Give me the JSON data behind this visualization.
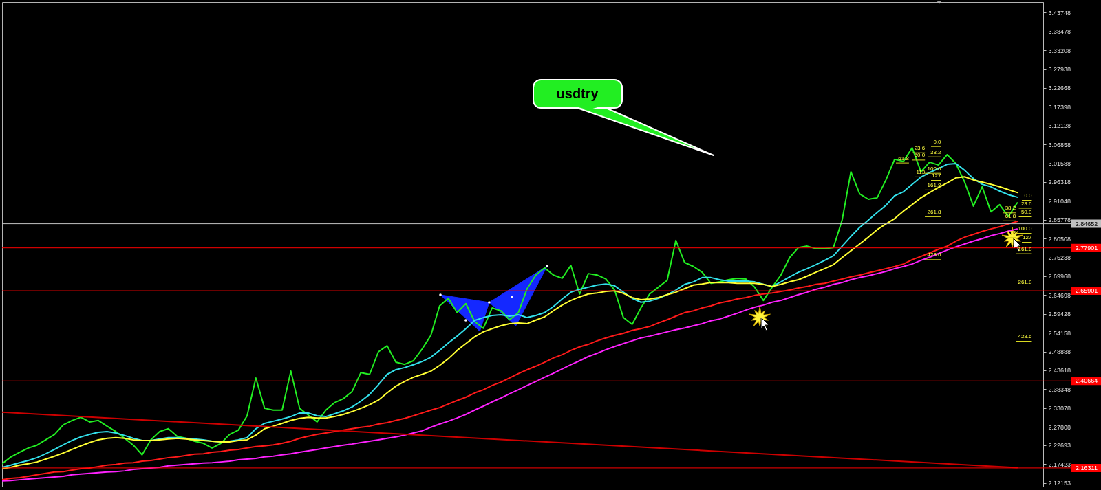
{
  "chart_data": {
    "type": "line",
    "categories": [
      null,
      null,
      null,
      null,
      null,
      null,
      null,
      null,
      null,
      null,
      null,
      null,
      null,
      null,
      null,
      null,
      null,
      null,
      null,
      null,
      null,
      null,
      null,
      null,
      null,
      null,
      null,
      null,
      null,
      null,
      null,
      null,
      null,
      null,
      null,
      null,
      null,
      null,
      null,
      null,
      null,
      null,
      null,
      null,
      null,
      null,
      null,
      null,
      null,
      null,
      null,
      null,
      null,
      null,
      null,
      null,
      null,
      null,
      null,
      null,
      null,
      null,
      null,
      null,
      null,
      null,
      null,
      null,
      null,
      null,
      null,
      null,
      null,
      null,
      null,
      null,
      null,
      null,
      null,
      null,
      null,
      null,
      null,
      null,
      null,
      null,
      null,
      null,
      null,
      null,
      null,
      null,
      null,
      null,
      null,
      null,
      null,
      null,
      null,
      null,
      null,
      null,
      null,
      null,
      null,
      null,
      null,
      null,
      null,
      null,
      null,
      null,
      null,
      null,
      null,
      null,
      null
    ],
    "series": [
      {
        "color": "#22ee22",
        "values": [
          2.175,
          2.194,
          2.207,
          2.219,
          2.227,
          2.242,
          2.257,
          2.284,
          2.296,
          2.305,
          2.292,
          2.296,
          2.28,
          2.265,
          2.246,
          2.227,
          2.2,
          2.242,
          2.265,
          2.273,
          2.252,
          2.246,
          2.238,
          2.232,
          2.219,
          2.232,
          2.257,
          2.269,
          2.309,
          2.415,
          2.33,
          2.325,
          2.325,
          2.434,
          2.33,
          2.311,
          2.292,
          2.325,
          2.346,
          2.357,
          2.377,
          2.43,
          2.425,
          2.488,
          2.505,
          2.459,
          2.453,
          2.463,
          2.496,
          2.534,
          2.617,
          2.638,
          2.598,
          2.623,
          2.573,
          2.554,
          2.611,
          2.603,
          2.578,
          2.598,
          2.665,
          2.703,
          2.723,
          2.703,
          2.694,
          2.73,
          2.65,
          2.707,
          2.703,
          2.692,
          2.661,
          2.584,
          2.565,
          2.611,
          2.65,
          2.669,
          2.688,
          2.8,
          2.738,
          2.727,
          2.711,
          2.68,
          2.684,
          2.69,
          2.694,
          2.692,
          2.669,
          2.632,
          2.669,
          2.703,
          2.752,
          2.78,
          2.784,
          2.777,
          2.777,
          2.78,
          2.857,
          2.992,
          2.93,
          2.915,
          2.919,
          2.969,
          3.027,
          3.021,
          3.059,
          2.992,
          3.019,
          3.011,
          3.04,
          3.015,
          2.963,
          2.896,
          2.95,
          2.88,
          2.9,
          2.867,
          2.905
        ]
      },
      {
        "color": "#33e0ea",
        "values": [
          2.165,
          2.171,
          2.178,
          2.184,
          2.192,
          2.203,
          2.215,
          2.228,
          2.24,
          2.25,
          2.257,
          2.263,
          2.265,
          2.261,
          2.254,
          2.246,
          2.24,
          2.24,
          2.244,
          2.248,
          2.248,
          2.246,
          2.244,
          2.242,
          2.238,
          2.236,
          2.238,
          2.242,
          2.248,
          2.273,
          2.288,
          2.294,
          2.3,
          2.307,
          2.317,
          2.317,
          2.309,
          2.307,
          2.315,
          2.323,
          2.334,
          2.35,
          2.369,
          2.396,
          2.425,
          2.438,
          2.444,
          2.452,
          2.461,
          2.473,
          2.492,
          2.513,
          2.532,
          2.553,
          2.576,
          2.584,
          2.59,
          2.592,
          2.588,
          2.592,
          2.584,
          2.59,
          2.598,
          2.615,
          2.636,
          2.655,
          2.663,
          2.669,
          2.675,
          2.678,
          2.673,
          2.655,
          2.638,
          2.627,
          2.63,
          2.638,
          2.648,
          2.661,
          2.677,
          2.684,
          2.696,
          2.696,
          2.69,
          2.686,
          2.686,
          2.686,
          2.684,
          2.677,
          2.671,
          2.684,
          2.698,
          2.711,
          2.721,
          2.732,
          2.744,
          2.757,
          2.784,
          2.811,
          2.836,
          2.857,
          2.878,
          2.898,
          2.925,
          2.936,
          2.957,
          2.977,
          2.99,
          3.001,
          3.013,
          3.015,
          2.996,
          2.973,
          2.957,
          2.95,
          2.938,
          2.928,
          2.921
        ]
      },
      {
        "color": "#ffff33",
        "values": [
          2.161,
          2.165,
          2.171,
          2.175,
          2.18,
          2.188,
          2.196,
          2.205,
          2.215,
          2.225,
          2.234,
          2.242,
          2.246,
          2.248,
          2.246,
          2.242,
          2.24,
          2.24,
          2.242,
          2.244,
          2.246,
          2.244,
          2.242,
          2.24,
          2.238,
          2.236,
          2.236,
          2.24,
          2.242,
          2.255,
          2.273,
          2.28,
          2.288,
          2.296,
          2.302,
          2.305,
          2.303,
          2.303,
          2.307,
          2.313,
          2.321,
          2.33,
          2.34,
          2.353,
          2.373,
          2.392,
          2.405,
          2.417,
          2.425,
          2.434,
          2.45,
          2.469,
          2.492,
          2.511,
          2.53,
          2.544,
          2.553,
          2.561,
          2.567,
          2.569,
          2.567,
          2.577,
          2.586,
          2.603,
          2.619,
          2.632,
          2.642,
          2.65,
          2.653,
          2.657,
          2.659,
          2.652,
          2.64,
          2.634,
          2.636,
          2.64,
          2.648,
          2.655,
          2.665,
          2.675,
          2.678,
          2.682,
          2.682,
          2.682,
          2.68,
          2.68,
          2.68,
          2.677,
          2.671,
          2.677,
          2.684,
          2.69,
          2.7,
          2.711,
          2.721,
          2.732,
          2.752,
          2.771,
          2.79,
          2.809,
          2.83,
          2.846,
          2.861,
          2.882,
          2.9,
          2.919,
          2.934,
          2.948,
          2.961,
          2.975,
          2.978,
          2.969,
          2.963,
          2.957,
          2.95,
          2.942,
          2.934
        ]
      },
      {
        "color": "#ff1a1a",
        "values": [
          2.13,
          2.134,
          2.136,
          2.14,
          2.144,
          2.148,
          2.152,
          2.153,
          2.157,
          2.161,
          2.163,
          2.167,
          2.171,
          2.173,
          2.177,
          2.178,
          2.182,
          2.184,
          2.188,
          2.192,
          2.194,
          2.198,
          2.202,
          2.203,
          2.207,
          2.209,
          2.213,
          2.215,
          2.219,
          2.223,
          2.225,
          2.228,
          2.232,
          2.238,
          2.246,
          2.252,
          2.257,
          2.261,
          2.265,
          2.269,
          2.273,
          2.277,
          2.28,
          2.286,
          2.29,
          2.296,
          2.302,
          2.309,
          2.317,
          2.325,
          2.332,
          2.342,
          2.352,
          2.361,
          2.373,
          2.382,
          2.394,
          2.403,
          2.415,
          2.427,
          2.438,
          2.448,
          2.459,
          2.471,
          2.48,
          2.492,
          2.502,
          2.509,
          2.519,
          2.527,
          2.534,
          2.54,
          2.548,
          2.553,
          2.559,
          2.569,
          2.578,
          2.588,
          2.598,
          2.603,
          2.611,
          2.617,
          2.625,
          2.63,
          2.636,
          2.64,
          2.646,
          2.65,
          2.653,
          2.657,
          2.661,
          2.667,
          2.671,
          2.677,
          2.68,
          2.686,
          2.692,
          2.698,
          2.703,
          2.709,
          2.715,
          2.721,
          2.727,
          2.734,
          2.746,
          2.755,
          2.765,
          2.775,
          2.784,
          2.798,
          2.809,
          2.817,
          2.825,
          2.832,
          2.838,
          2.846,
          2.853
        ]
      },
      {
        "color": "#ff22ff",
        "values": [
          2.127,
          2.128,
          2.13,
          2.132,
          2.134,
          2.136,
          2.138,
          2.14,
          2.144,
          2.146,
          2.148,
          2.15,
          2.152,
          2.153,
          2.155,
          2.159,
          2.161,
          2.163,
          2.165,
          2.169,
          2.171,
          2.173,
          2.175,
          2.177,
          2.178,
          2.18,
          2.182,
          2.186,
          2.188,
          2.19,
          2.194,
          2.196,
          2.2,
          2.203,
          2.207,
          2.211,
          2.215,
          2.219,
          2.223,
          2.227,
          2.23,
          2.234,
          2.238,
          2.242,
          2.246,
          2.25,
          2.255,
          2.261,
          2.267,
          2.277,
          2.286,
          2.294,
          2.303,
          2.313,
          2.325,
          2.336,
          2.348,
          2.359,
          2.371,
          2.382,
          2.394,
          2.405,
          2.417,
          2.428,
          2.44,
          2.452,
          2.463,
          2.475,
          2.484,
          2.494,
          2.503,
          2.511,
          2.519,
          2.527,
          2.532,
          2.538,
          2.544,
          2.55,
          2.555,
          2.561,
          2.567,
          2.575,
          2.58,
          2.588,
          2.596,
          2.605,
          2.613,
          2.619,
          2.627,
          2.632,
          2.64,
          2.648,
          2.655,
          2.663,
          2.669,
          2.677,
          2.682,
          2.69,
          2.696,
          2.701,
          2.707,
          2.713,
          2.721,
          2.727,
          2.734,
          2.744,
          2.753,
          2.763,
          2.773,
          2.782,
          2.79,
          2.798,
          2.805,
          2.813,
          2.819,
          2.826,
          2.832
        ]
      },
      {
        "type": "line",
        "color": "#cc0000",
        "values": [
          2.319,
          null,
          null,
          null,
          null,
          null,
          null,
          null,
          null,
          null,
          null,
          null,
          null,
          null,
          null,
          null,
          null,
          null,
          null,
          null,
          null,
          null,
          null,
          null,
          null,
          null,
          null,
          null,
          null,
          null,
          null,
          null,
          null,
          null,
          null,
          null,
          null,
          null,
          null,
          null,
          null,
          null,
          null,
          null,
          null,
          null,
          null,
          null,
          null,
          null,
          null,
          null,
          null,
          null,
          null,
          null,
          null,
          null,
          null,
          null,
          null,
          null,
          null,
          null,
          null,
          null,
          null,
          null,
          null,
          null,
          null,
          null,
          null,
          null,
          null,
          null,
          null,
          null,
          null,
          null,
          null,
          null,
          null,
          null,
          null,
          null,
          null,
          null,
          null,
          null,
          null,
          null,
          null,
          null,
          null,
          null,
          null,
          null,
          null,
          null,
          null,
          null,
          null,
          null,
          null,
          null,
          null,
          null,
          null,
          null,
          null,
          null,
          null,
          null,
          null,
          null,
          2.164
        ]
      }
    ],
    "ylim": [
      2.111,
      3.467
    ],
    "yticks": [
      3.43748,
      3.38478,
      3.33208,
      3.27938,
      3.22668,
      3.17398,
      3.12128,
      3.06858,
      3.01588,
      2.96318,
      2.91048,
      2.85778,
      2.80508,
      2.75238,
      2.69968,
      2.64698,
      2.59428,
      2.54158,
      2.48888,
      2.43618,
      2.38348,
      2.33078,
      2.27808,
      2.22693,
      2.17423,
      2.12153
    ],
    "tick_labels": "y",
    "ref_lines": [
      {
        "axis": "y",
        "value": 2.84652,
        "label": "2.84652",
        "color": "#c0c0c0"
      },
      {
        "axis": "y",
        "value": 2.77901,
        "label": "2.77901",
        "color": "#ff0000"
      },
      {
        "axis": "y",
        "value": 2.65901,
        "label": "2.65901",
        "color": "#ff0000"
      },
      {
        "axis": "y",
        "value": 2.40664,
        "label": "2.40664",
        "color": "#ff0000"
      },
      {
        "axis": "y",
        "value": 2.16311,
        "label": "2.16311",
        "color": "#ff0000"
      }
    ],
    "annotations": [
      "usdtry",
      "0.0",
      "23.6",
      "38.2",
      "50.0",
      "61.8",
      "100.0",
      "113",
      "127",
      "161.8",
      "261.8",
      "423.6",
      "0.0",
      "23.6",
      "38.2",
      "50.0",
      "61.8",
      "100.0",
      "113",
      "127",
      "161.8",
      "261.8",
      "423.6"
    ]
  }
}
